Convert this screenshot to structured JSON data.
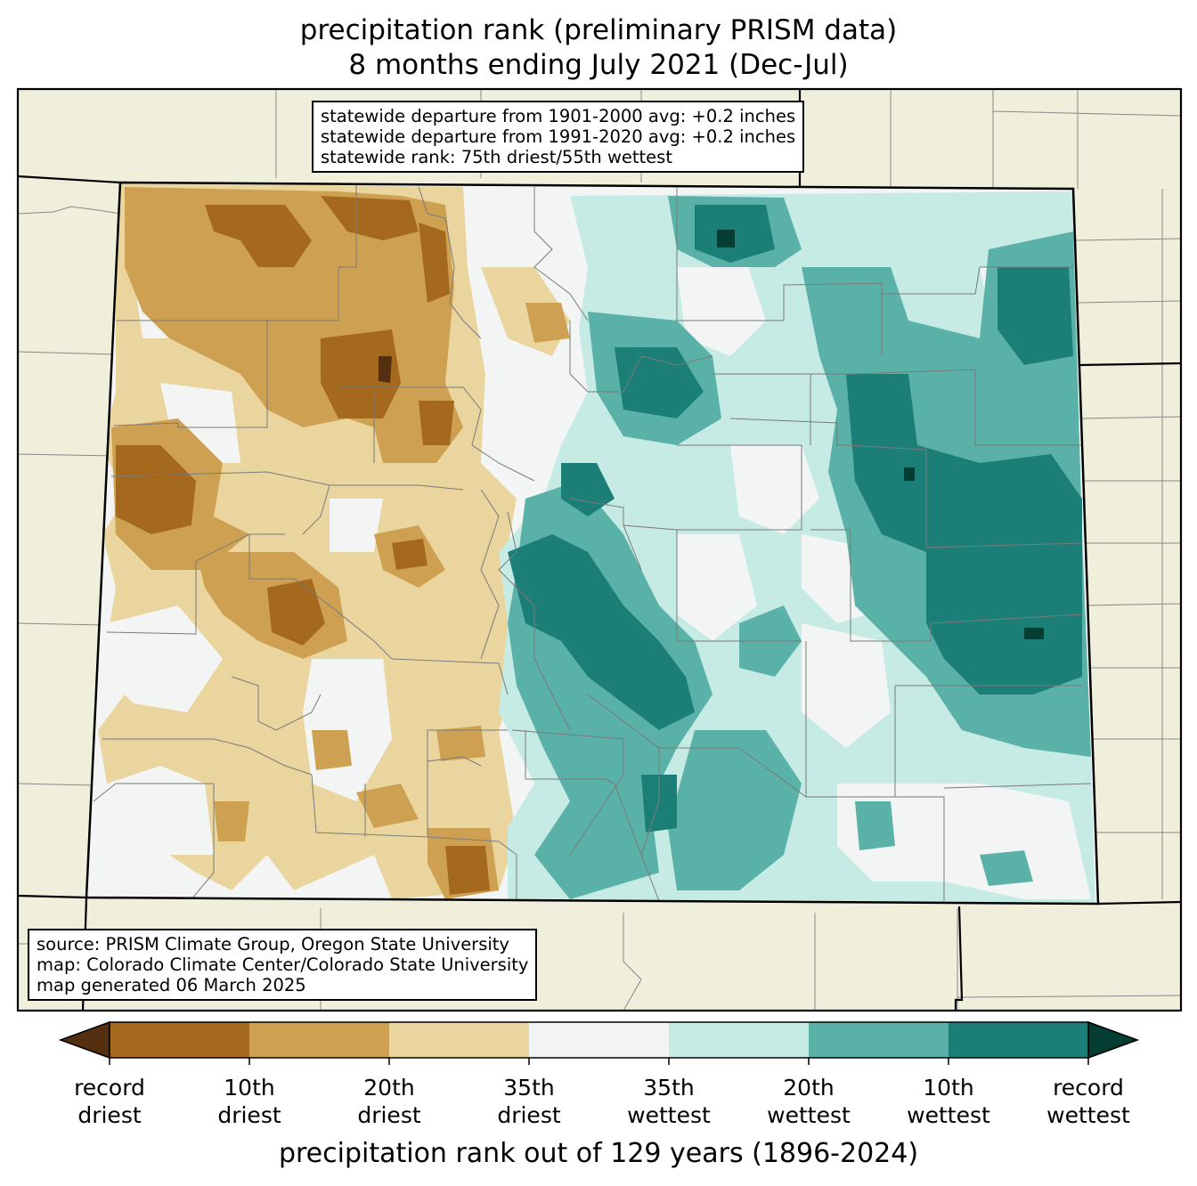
{
  "title": {
    "line1": "precipitation rank (preliminary PRISM data)",
    "line2": "8 months ending July 2021 (Dec-Jul)"
  },
  "stats_box": {
    "line1": "statewide departure from 1901-2000 avg: +0.2 inches",
    "line2": "statewide departure from 1991-2020 avg: +0.2 inches",
    "line3": "statewide rank: 75th driest/55th wettest"
  },
  "source_box": {
    "line1": "source: PRISM Climate Group, Oregon State University",
    "line2": "map: Colorado Climate Center/Colorado State University",
    "line3": "map generated 06 March 2025"
  },
  "colorbar": {
    "title": "precipitation rank out of 129 years (1896-2024)",
    "ticks": [
      {
        "line1": "record",
        "line2": "driest"
      },
      {
        "line1": "10th",
        "line2": "driest"
      },
      {
        "line1": "20th",
        "line2": "driest"
      },
      {
        "line1": "35th",
        "line2": "driest"
      },
      {
        "line1": "35th",
        "line2": "wettest"
      },
      {
        "line1": "20th",
        "line2": "wettest"
      },
      {
        "line1": "10th",
        "line2": "wettest"
      },
      {
        "line1": "record",
        "line2": "wettest"
      }
    ],
    "colors": {
      "record_driest": "#553010",
      "driest_10": "#a4691c",
      "driest_20": "#cea152",
      "driest_35": "#ead59e",
      "normal": "#f3f5f4",
      "wettest_35": "#c6eae4",
      "wettest_20": "#5ab1a7",
      "wettest_10": "#1b7f78",
      "record_wettest": "#053d33"
    }
  },
  "map": {
    "background_land_color": "#efefdc"
  }
}
